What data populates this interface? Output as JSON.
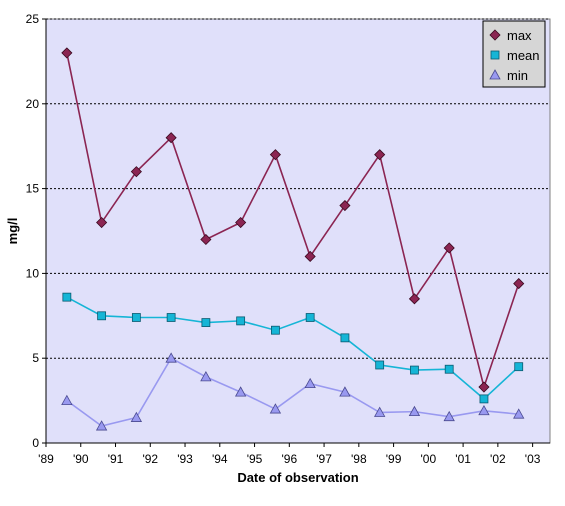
{
  "chart_data": {
    "type": "line",
    "x": [
      1989.6,
      1990.6,
      1991.6,
      1992.6,
      1993.6,
      1994.6,
      1995.6,
      1996.6,
      1997.6,
      1998.6,
      1999.6,
      2000.6,
      2001.6,
      2002.6
    ],
    "series": [
      {
        "name": "max",
        "color": "#8b2552",
        "marker": "diamond",
        "values": [
          23,
          13,
          16,
          18,
          12,
          13,
          17,
          11,
          14,
          17,
          8.5,
          11.5,
          3.3,
          9.4
        ]
      },
      {
        "name": "mean",
        "color": "#15b5d6",
        "marker": "square",
        "values": [
          8.6,
          7.5,
          7.4,
          7.4,
          7.1,
          7.2,
          6.65,
          7.4,
          6.2,
          4.6,
          4.3,
          4.35,
          2.6,
          4.5
        ]
      },
      {
        "name": "min",
        "color": "#9999f0",
        "marker": "triangle",
        "values": [
          2.5,
          1.0,
          1.5,
          5.0,
          3.9,
          3.0,
          2.0,
          3.5,
          3.0,
          1.8,
          1.85,
          1.55,
          1.9,
          1.7
        ]
      }
    ],
    "xlim": [
      1989,
      2003.5
    ],
    "ylim": [
      0,
      25
    ],
    "xticks": [
      1989,
      1990,
      1991,
      1992,
      1993,
      1994,
      1995,
      1996,
      1997,
      1998,
      1999,
      2000,
      2001,
      2002,
      2003
    ],
    "xtick_labels": [
      "'89",
      "'90",
      "'91",
      "'92",
      "'93",
      "'94",
      "'95",
      "'96",
      "'97",
      "'98",
      "'99",
      "'00",
      "'01",
      "'02",
      "'03"
    ],
    "yticks": [
      0,
      5,
      10,
      15,
      20,
      25
    ],
    "ytick_labels": [
      "0",
      "5",
      "10",
      "15",
      "20",
      "25"
    ],
    "xlabel": "Date of observation",
    "ylabel": "mg/l",
    "grid": "horizontal dashed",
    "legend": "top-right",
    "plot_background": "#e0e0fa"
  }
}
